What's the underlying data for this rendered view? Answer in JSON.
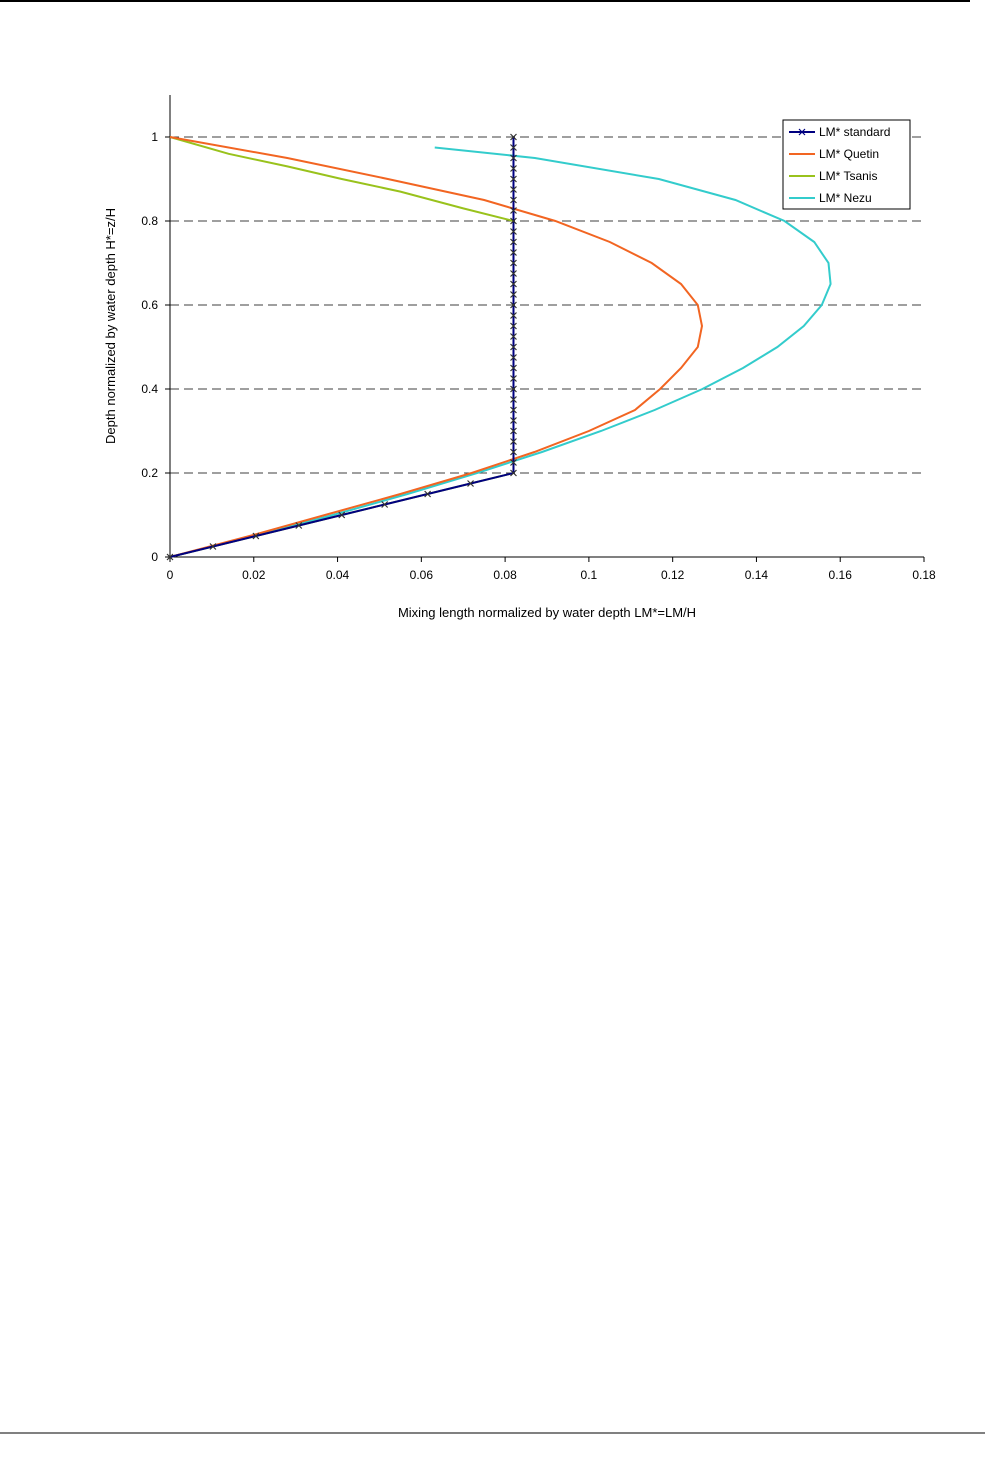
{
  "chart_data": {
    "type": "line",
    "xlabel": "Mixing length normalized by water depth  LM*=LM/H",
    "ylabel": "Depth normalized by water depth  H*=z/H",
    "xlim": [
      0,
      0.18
    ],
    "xticks": [
      0,
      0.02,
      0.04,
      0.06,
      0.08,
      0.1,
      0.12,
      0.14,
      0.16,
      0.18
    ],
    "ylim": [
      0,
      1.1
    ],
    "yticks": [
      0,
      0.2,
      0.4,
      0.6,
      0.8,
      1
    ],
    "grid": true,
    "legend": "upper right",
    "series": [
      {
        "name": "LM* standard",
        "color": "#000080",
        "marker": "x",
        "x": [
          0,
          0.01025,
          0.0205,
          0.03075,
          0.041,
          0.05125,
          0.0615,
          0.07175,
          0.082,
          0.082,
          0.082,
          0.082,
          0.082,
          0.082,
          0.082,
          0.082,
          0.082,
          0.082,
          0.082,
          0.082,
          0.082,
          0.082,
          0.082,
          0.082,
          0.082,
          0.082,
          0.082,
          0.082,
          0.082,
          0.082,
          0.082,
          0.082,
          0.082,
          0.082,
          0.082,
          0.082,
          0.082,
          0.082,
          0.082,
          0.082,
          0.082
        ],
        "values": [
          0,
          0.025,
          0.05,
          0.075,
          0.1,
          0.125,
          0.15,
          0.175,
          0.2,
          0.225,
          0.25,
          0.275,
          0.3,
          0.325,
          0.35,
          0.375,
          0.4,
          0.425,
          0.45,
          0.475,
          0.5,
          0.525,
          0.55,
          0.575,
          0.6,
          0.625,
          0.65,
          0.675,
          0.7,
          0.725,
          0.75,
          0.775,
          0.8,
          0.825,
          0.85,
          0.875,
          0.9,
          0.925,
          0.95,
          0.975,
          1
        ]
      },
      {
        "name": "LM* Quetin",
        "color": "#f26522",
        "x": [
          0,
          0.019,
          0.037,
          0.055,
          0.072,
          0.087,
          0.1,
          0.111,
          0.117,
          0.122,
          0.126,
          0.127,
          0.126,
          0.122,
          0.115,
          0.105,
          0.092,
          0.075,
          0.052,
          0.028,
          0
        ],
        "values": [
          0,
          0.05,
          0.1,
          0.15,
          0.2,
          0.25,
          0.3,
          0.35,
          0.4,
          0.45,
          0.5,
          0.55,
          0.6,
          0.65,
          0.7,
          0.75,
          0.8,
          0.85,
          0.9,
          0.95,
          1
        ]
      },
      {
        "name": "LM* Tsanis",
        "color": "#99c21c",
        "x": [
          0,
          0.0205,
          0.041,
          0.0615,
          0.082,
          0.082,
          0.082,
          0.082,
          0.082,
          0.082,
          0.082,
          0.082,
          0.082,
          0.082,
          0.082,
          0.082,
          0.082,
          0.07,
          0.055,
          0.041,
          0.028,
          0.014,
          0
        ],
        "values": [
          0,
          0.05,
          0.1,
          0.15,
          0.2,
          0.25,
          0.3,
          0.35,
          0.4,
          0.45,
          0.5,
          0.55,
          0.6,
          0.65,
          0.7,
          0.75,
          0.8,
          0.83,
          0.87,
          0.9,
          0.93,
          0.96,
          1
        ]
      },
      {
        "name": "LM* Nezu",
        "color": "#33cccc",
        "x": [
          0,
          0.02,
          0.0389,
          0.0567,
          0.0733,
          0.0888,
          0.1029,
          0.1157,
          0.1271,
          0.1368,
          0.145,
          0.1513,
          0.1556,
          0.1577,
          0.1572,
          0.1538,
          0.1467,
          0.135,
          0.1167,
          0.0871,
          0.0632
        ],
        "values": [
          0,
          0.05,
          0.1,
          0.15,
          0.2,
          0.25,
          0.3,
          0.35,
          0.4,
          0.45,
          0.5,
          0.55,
          0.6,
          0.65,
          0.7,
          0.75,
          0.8,
          0.85,
          0.9,
          0.95,
          0.975
        ]
      }
    ]
  }
}
